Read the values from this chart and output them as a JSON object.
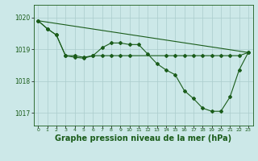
{
  "background_color": "#cce8e8",
  "grid_color": "#aacccc",
  "line_color": "#1a5c1a",
  "marker_color": "#1a5c1a",
  "xlabel": "Graphe pression niveau de la mer (hPa)",
  "xlabel_fontsize": 7,
  "ylim": [
    1016.6,
    1020.4
  ],
  "yticks": [
    1017,
    1018,
    1019,
    1020
  ],
  "ytick_labels": [
    "1017",
    "1018",
    "1019",
    "1020"
  ],
  "xlim": [
    -0.5,
    23.5
  ],
  "xticks": [
    0,
    1,
    2,
    3,
    4,
    5,
    6,
    7,
    8,
    9,
    10,
    11,
    12,
    13,
    14,
    15,
    16,
    17,
    18,
    19,
    20,
    21,
    22,
    23
  ],
  "series1_x": [
    0,
    1,
    2,
    3,
    4,
    5,
    6,
    7,
    8,
    9,
    10,
    14,
    15,
    16,
    17,
    18,
    19,
    20,
    21,
    22,
    23
  ],
  "series1_y": [
    1019.9,
    1019.65,
    1019.45,
    1018.8,
    1018.8,
    1018.75,
    1018.8,
    1018.8,
    1018.8,
    1018.8,
    1018.8,
    1018.8,
    1018.8,
    1018.8,
    1018.8,
    1018.8,
    1018.8,
    1018.8,
    1018.8,
    1018.8,
    1018.9
  ],
  "series2_x": [
    0,
    1,
    2,
    3,
    4,
    5,
    6,
    7,
    8,
    9,
    10,
    11,
    12,
    13,
    14,
    15,
    16,
    17,
    18,
    19,
    20,
    21,
    22,
    23
  ],
  "series2_y": [
    1019.9,
    1019.65,
    1019.45,
    1018.8,
    1018.75,
    1018.72,
    1018.8,
    1019.05,
    1019.2,
    1019.2,
    1019.15,
    1019.15,
    1018.85,
    1018.55,
    1018.35,
    1018.2,
    1017.7,
    1017.45,
    1017.15,
    1017.05,
    1017.05,
    1017.5,
    1018.35,
    1018.9
  ],
  "series3_x": [
    0,
    23
  ],
  "series3_y": [
    1019.9,
    1018.9
  ]
}
